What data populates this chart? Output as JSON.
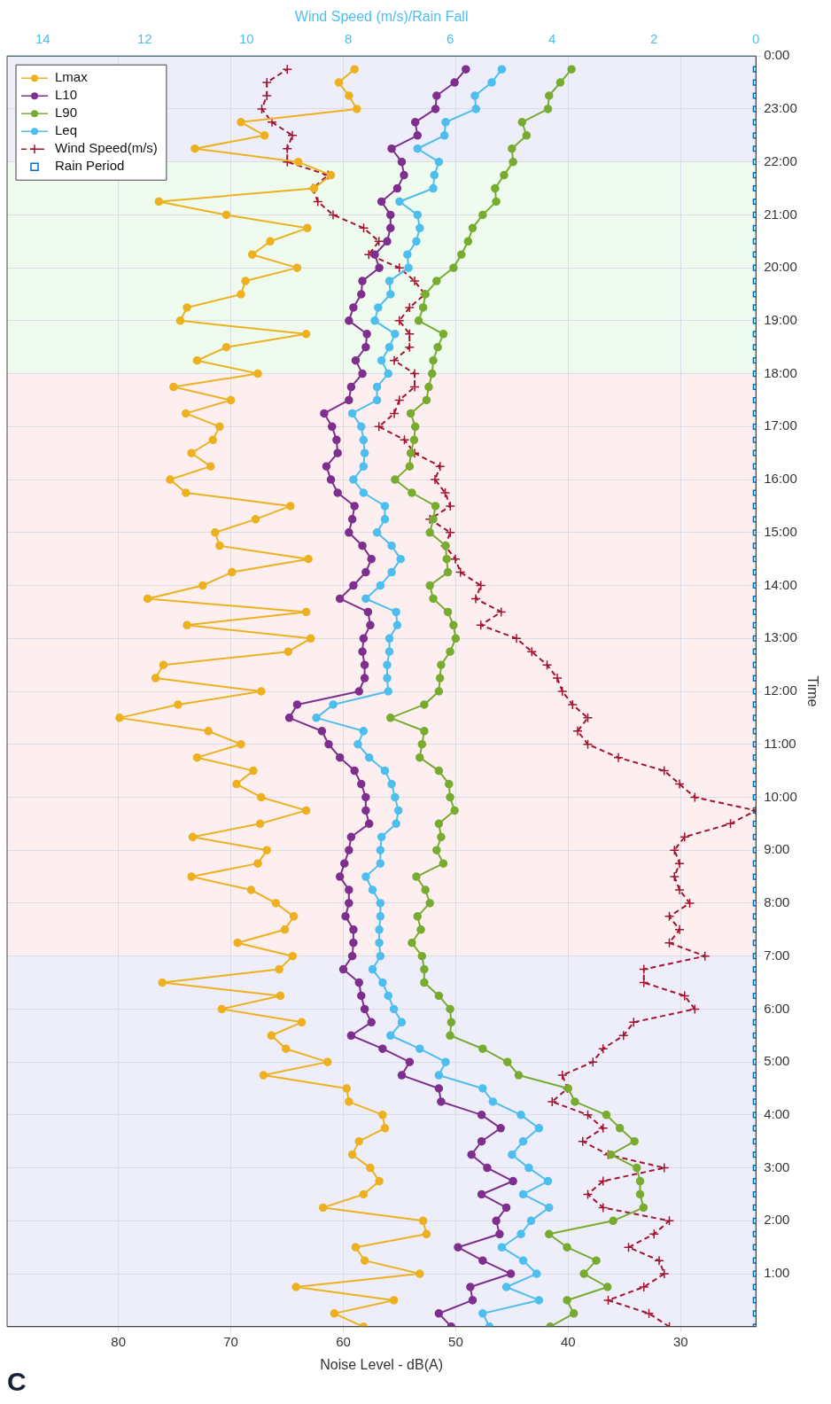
{
  "chart_data": {
    "type": "line",
    "xlabel": "Noise Level - dB(A)",
    "ylabel": "Time",
    "x2label": "Wind Speed (m/s)/Rain Fall",
    "annotations": [
      "C"
    ],
    "series": [
      {
        "name": "Lmax",
        "color": "#edb120",
        "marker": "circle",
        "line_style": "solid",
        "x": [
          58.2,
          60.8,
          55.5,
          64.2,
          53.2,
          58.1,
          58.9,
          52.6,
          52.9,
          61.8,
          58.2,
          56.8,
          57.6,
          59.2,
          58.6,
          56.3,
          56.5,
          59.5,
          59.7,
          67.1,
          61.4,
          65.1,
          66.4,
          63.7,
          70.8,
          65.6,
          76.1,
          65.7,
          64.5,
          69.4,
          65.2,
          64.4,
          66.0,
          68.2,
          73.5,
          67.6,
          66.8,
          73.4,
          67.4,
          63.3,
          67.3,
          69.5,
          68.0,
          73.0,
          69.1,
          72.0,
          79.9,
          74.7,
          67.3,
          76.7,
          76.0,
          64.9,
          62.9,
          73.9,
          63.3,
          77.4,
          72.5,
          69.9,
          63.1,
          71.0,
          71.4,
          67.8,
          64.7,
          74.0,
          75.4,
          71.8,
          73.5,
          71.6,
          71.0,
          74.0,
          70.0,
          75.1,
          67.6,
          73.0,
          70.4,
          63.3,
          74.5,
          73.9,
          69.1,
          68.7,
          64.1,
          68.1,
          66.5,
          63.2,
          70.4,
          76.4,
          62.6,
          61.1,
          64.0,
          73.2,
          67.0,
          69.1,
          58.8,
          59.5,
          60.4,
          59.0
        ],
        "values": [
          0,
          0.25,
          0.5,
          0.75,
          1,
          1.25,
          1.5,
          1.75,
          2,
          2.25,
          2.5,
          2.75,
          3,
          3.25,
          3.5,
          3.75,
          4,
          4.25,
          4.5,
          4.75,
          5,
          5.25,
          5.5,
          5.75,
          6,
          6.25,
          6.5,
          6.75,
          7,
          7.25,
          7.5,
          7.75,
          8,
          8.25,
          8.5,
          8.75,
          9,
          9.25,
          9.5,
          9.75,
          10,
          10.25,
          10.5,
          10.75,
          11,
          11.25,
          11.5,
          11.75,
          12,
          12.25,
          12.5,
          12.75,
          13,
          13.25,
          13.5,
          13.75,
          14,
          14.25,
          14.5,
          14.75,
          15,
          15.25,
          15.5,
          15.75,
          16,
          16.25,
          16.5,
          16.75,
          17,
          17.25,
          17.5,
          17.75,
          18,
          18.25,
          18.5,
          18.75,
          19,
          19.25,
          19.5,
          19.75,
          20,
          20.25,
          20.5,
          20.75,
          21,
          21.25,
          21.5,
          21.75,
          22,
          22.25,
          22.5,
          22.75,
          23,
          23.25,
          23.5,
          23.75
        ]
      },
      {
        "name": "L10",
        "color": "#7e2f8e",
        "marker": "circle",
        "line_style": "solid",
        "x": [
          50.4,
          51.5,
          48.5,
          48.7,
          45.1,
          47.6,
          49.8,
          46.1,
          46.4,
          45.5,
          47.7,
          44.9,
          47.2,
          48.6,
          47.7,
          46.0,
          47.7,
          51.3,
          51.5,
          54.8,
          54.1,
          56.5,
          59.3,
          57.5,
          58.1,
          58.4,
          58.6,
          60.0,
          59.2,
          59.1,
          59.1,
          59.8,
          59.5,
          59.5,
          60.3,
          59.9,
          59.5,
          59.3,
          57.7,
          58.0,
          58.0,
          58.4,
          59.0,
          60.3,
          61.3,
          61.9,
          64.8,
          64.1,
          58.6,
          58.1,
          58.1,
          58.3,
          58.2,
          57.6,
          57.8,
          60.3,
          59.1,
          58.0,
          57.5,
          58.3,
          59.5,
          59.2,
          59.0,
          60.5,
          61.1,
          61.5,
          60.5,
          60.6,
          61.0,
          61.7,
          59.5,
          59.3,
          58.3,
          58.9,
          58.0,
          57.9,
          59.5,
          59.1,
          58.4,
          58.3,
          56.8,
          57.2,
          56.1,
          55.8,
          55.8,
          56.6,
          55.2,
          54.6,
          54.8,
          55.7,
          53.4,
          53.6,
          51.8,
          51.7,
          50.1,
          49.1
        ],
        "values": [
          0,
          0.25,
          0.5,
          0.75,
          1,
          1.25,
          1.5,
          1.75,
          2,
          2.25,
          2.5,
          2.75,
          3,
          3.25,
          3.5,
          3.75,
          4,
          4.25,
          4.5,
          4.75,
          5,
          5.25,
          5.5,
          5.75,
          6,
          6.25,
          6.5,
          6.75,
          7,
          7.25,
          7.5,
          7.75,
          8,
          8.25,
          8.5,
          8.75,
          9,
          9.25,
          9.5,
          9.75,
          10,
          10.25,
          10.5,
          10.75,
          11,
          11.25,
          11.5,
          11.75,
          12,
          12.25,
          12.5,
          12.75,
          13,
          13.25,
          13.5,
          13.75,
          14,
          14.25,
          14.5,
          14.75,
          15,
          15.25,
          15.5,
          15.75,
          16,
          16.25,
          16.5,
          16.75,
          17,
          17.25,
          17.5,
          17.75,
          18,
          18.25,
          18.5,
          18.75,
          19,
          19.25,
          19.5,
          19.75,
          20,
          20.25,
          20.5,
          20.75,
          21,
          21.25,
          21.5,
          21.75,
          22,
          22.25,
          22.5,
          22.75,
          23,
          23.25,
          23.5,
          23.75
        ]
      },
      {
        "name": "L90",
        "color": "#77ac30",
        "marker": "circle",
        "line_style": "solid",
        "x": [
          41.6,
          39.5,
          40.1,
          36.5,
          38.6,
          37.5,
          40.1,
          41.7,
          36.0,
          33.3,
          33.6,
          33.6,
          33.9,
          36.2,
          34.1,
          35.4,
          36.6,
          39.4,
          40.0,
          44.4,
          45.4,
          47.6,
          50.5,
          50.4,
          50.5,
          51.5,
          52.8,
          52.8,
          53.0,
          53.9,
          53.1,
          53.4,
          52.3,
          52.7,
          53.5,
          51.1,
          51.7,
          51.3,
          51.5,
          50.1,
          50.5,
          50.6,
          51.5,
          53.2,
          53.0,
          52.8,
          55.8,
          52.8,
          51.5,
          51.4,
          51.3,
          50.5,
          50.0,
          50.2,
          50.7,
          52.0,
          52.3,
          50.7,
          50.8,
          50.9,
          52.3,
          52.0,
          51.8,
          53.9,
          55.4,
          54.1,
          54.0,
          53.7,
          53.6,
          54.0,
          52.6,
          52.4,
          52.1,
          52.0,
          51.6,
          51.1,
          53.3,
          52.9,
          52.7,
          51.7,
          50.2,
          49.5,
          48.9,
          48.5,
          47.6,
          46.4,
          46.5,
          45.7,
          44.9,
          45.0,
          43.7,
          44.1,
          41.8,
          41.7,
          40.7,
          39.7
        ],
        "values": [
          0,
          0.25,
          0.5,
          0.75,
          1,
          1.25,
          1.5,
          1.75,
          2,
          2.25,
          2.5,
          2.75,
          3,
          3.25,
          3.5,
          3.75,
          4,
          4.25,
          4.5,
          4.75,
          5,
          5.25,
          5.5,
          5.75,
          6,
          6.25,
          6.5,
          6.75,
          7,
          7.25,
          7.5,
          7.75,
          8,
          8.25,
          8.5,
          8.75,
          9,
          9.25,
          9.5,
          9.75,
          10,
          10.25,
          10.5,
          10.75,
          11,
          11.25,
          11.5,
          11.75,
          12,
          12.25,
          12.5,
          12.75,
          13,
          13.25,
          13.5,
          13.75,
          14,
          14.25,
          14.5,
          14.75,
          15,
          15.25,
          15.5,
          15.75,
          16,
          16.25,
          16.5,
          16.75,
          17,
          17.25,
          17.5,
          17.75,
          18,
          18.25,
          18.5,
          18.75,
          19,
          19.25,
          19.5,
          19.75,
          20,
          20.25,
          20.5,
          20.75,
          21,
          21.25,
          21.5,
          21.75,
          22,
          22.25,
          22.5,
          22.75,
          23,
          23.25,
          23.5,
          23.75
        ]
      },
      {
        "name": "Leq",
        "color": "#4dbeee",
        "marker": "circle",
        "line_style": "solid",
        "x": [
          47.0,
          47.6,
          42.6,
          45.5,
          42.8,
          44.0,
          45.9,
          44.2,
          43.3,
          41.7,
          44.0,
          41.8,
          43.5,
          45.0,
          44.0,
          42.6,
          44.2,
          46.7,
          47.6,
          51.5,
          50.9,
          53.2,
          55.8,
          54.8,
          55.5,
          56.0,
          56.5,
          57.4,
          56.7,
          56.8,
          56.8,
          56.7,
          56.7,
          57.4,
          58.0,
          56.7,
          56.7,
          56.6,
          55.3,
          55.1,
          55.4,
          55.7,
          56.3,
          57.7,
          58.7,
          58.2,
          62.4,
          60.9,
          56.0,
          56.1,
          56.1,
          55.9,
          55.9,
          55.2,
          55.3,
          58.0,
          56.7,
          55.7,
          54.9,
          55.7,
          57.0,
          56.3,
          56.3,
          58.2,
          59.1,
          58.2,
          58.1,
          58.2,
          58.4,
          59.2,
          57.0,
          57.0,
          56.0,
          56.6,
          55.9,
          55.4,
          57.2,
          56.9,
          55.8,
          55.9,
          54.2,
          54.3,
          53.5,
          53.2,
          53.4,
          55.0,
          52.0,
          51.9,
          51.5,
          53.4,
          51.0,
          50.9,
          48.2,
          48.3,
          46.8,
          45.9
        ],
        "values": [
          0,
          0.25,
          0.5,
          0.75,
          1,
          1.25,
          1.5,
          1.75,
          2,
          2.25,
          2.5,
          2.75,
          3,
          3.25,
          3.5,
          3.75,
          4,
          4.25,
          4.5,
          4.75,
          5,
          5.25,
          5.5,
          5.75,
          6,
          6.25,
          6.5,
          6.75,
          7,
          7.25,
          7.5,
          7.75,
          8,
          8.25,
          8.5,
          8.75,
          9,
          9.25,
          9.5,
          9.75,
          10,
          10.25,
          10.5,
          10.75,
          11,
          11.25,
          11.5,
          11.75,
          12,
          12.25,
          12.5,
          12.75,
          13,
          13.25,
          13.5,
          13.75,
          14,
          14.25,
          14.5,
          14.75,
          15,
          15.25,
          15.5,
          15.75,
          16,
          16.25,
          16.5,
          16.75,
          17,
          17.25,
          17.5,
          17.75,
          18,
          18.25,
          18.5,
          18.75,
          19,
          19.25,
          19.5,
          19.75,
          20,
          20.25,
          20.5,
          20.75,
          21,
          21.25,
          21.5,
          21.75,
          22,
          22.25,
          22.5,
          22.75,
          23,
          23.25,
          23.5,
          23.75
        ]
      },
      {
        "name": "Wind Speed(m/s)",
        "color": "#a2142f",
        "marker": "cross",
        "line_style": "dashed",
        "axis": "x2",
        "x": [
          1.7,
          2.1,
          2.9,
          2.2,
          1.8,
          1.9,
          2.5,
          2.0,
          1.7,
          3.0,
          3.3,
          3.0,
          1.8,
          2.9,
          3.4,
          3.0,
          3.3,
          4.0,
          3.7,
          3.8,
          3.2,
          3.0,
          2.6,
          2.4,
          1.2,
          1.4,
          2.2,
          2.2,
          1.0,
          1.7,
          1.5,
          1.7,
          1.3,
          1.5,
          1.6,
          1.5,
          1.6,
          1.4,
          0.5,
          0.0,
          1.2,
          1.5,
          1.8,
          2.7,
          3.3,
          3.5,
          3.3,
          3.6,
          3.8,
          3.9,
          4.1,
          4.4,
          4.7,
          5.4,
          5.0,
          5.5,
          5.4,
          5.8,
          5.9,
          6.1,
          6.0,
          6.4,
          6.0,
          6.1,
          6.3,
          6.2,
          6.7,
          6.9,
          7.4,
          7.1,
          7.0,
          6.7,
          6.7,
          7.1,
          6.8,
          6.8,
          7.0,
          6.8,
          6.5,
          6.7,
          7.0,
          7.6,
          7.4,
          7.7,
          8.3,
          8.6,
          8.7,
          8.4,
          9.2,
          9.2,
          9.1,
          9.5,
          9.7,
          9.6,
          9.6,
          9.2
        ],
        "values": [
          0,
          0.25,
          0.5,
          0.75,
          1,
          1.25,
          1.5,
          1.75,
          2,
          2.25,
          2.5,
          2.75,
          3,
          3.25,
          3.5,
          3.75,
          4,
          4.25,
          4.5,
          4.75,
          5,
          5.25,
          5.5,
          5.75,
          6,
          6.25,
          6.5,
          6.75,
          7,
          7.25,
          7.5,
          7.75,
          8,
          8.25,
          8.5,
          8.75,
          9,
          9.25,
          9.5,
          9.75,
          10,
          10.25,
          10.5,
          10.75,
          11,
          11.25,
          11.5,
          11.75,
          12,
          12.25,
          12.5,
          12.75,
          13,
          13.25,
          13.5,
          13.75,
          14,
          14.25,
          14.5,
          14.75,
          15,
          15.25,
          15.5,
          15.75,
          16,
          16.25,
          16.5,
          16.75,
          17,
          17.25,
          17.5,
          17.75,
          18,
          18.25,
          18.5,
          18.75,
          19,
          19.25,
          19.5,
          19.75,
          20,
          20.25,
          20.5,
          20.75,
          21,
          21.25,
          21.5,
          21.75,
          22,
          22.25,
          22.5,
          22.75,
          23,
          23.25,
          23.5,
          23.75
        ]
      },
      {
        "name": "Rain Period",
        "type": "scatter",
        "color": "#0072bd",
        "marker": "square",
        "axis": "x2",
        "x": [
          0,
          0,
          0,
          0,
          0,
          0,
          0,
          0,
          0,
          0,
          0,
          0,
          0,
          0,
          0,
          0,
          0,
          0,
          0,
          0,
          0,
          0,
          0,
          0,
          0,
          0,
          0,
          0,
          0,
          0,
          0,
          0,
          0,
          0,
          0,
          0,
          0,
          0,
          0,
          0,
          0,
          0,
          0,
          0,
          0,
          0,
          0,
          0,
          0,
          0,
          0,
          0,
          0,
          0,
          0,
          0,
          0,
          0,
          0,
          0,
          0,
          0,
          0,
          0,
          0,
          0,
          0,
          0,
          0,
          0,
          0,
          0,
          0,
          0,
          0,
          0,
          0,
          0,
          0,
          0,
          0,
          0,
          0,
          0,
          0,
          0,
          0,
          0,
          0,
          0,
          0,
          0,
          0,
          0,
          0,
          0
        ],
        "values": [
          0,
          0.25,
          0.5,
          0.75,
          1,
          1.25,
          1.5,
          1.75,
          2,
          2.25,
          2.5,
          2.75,
          3,
          3.25,
          3.5,
          3.75,
          4,
          4.25,
          4.5,
          4.75,
          5,
          5.25,
          5.5,
          5.75,
          6,
          6.25,
          6.5,
          6.75,
          7,
          7.25,
          7.5,
          7.75,
          8,
          8.25,
          8.5,
          8.75,
          9,
          9.25,
          9.5,
          9.75,
          10,
          10.25,
          10.5,
          10.75,
          11,
          11.25,
          11.5,
          11.75,
          12,
          12.25,
          12.5,
          12.75,
          13,
          13.25,
          13.5,
          13.75,
          14,
          14.25,
          14.5,
          14.75,
          15,
          15.25,
          15.5,
          15.75,
          16,
          16.25,
          16.5,
          16.75,
          17,
          17.25,
          17.5,
          17.75,
          18,
          18.25,
          18.5,
          18.75,
          19,
          19.25,
          19.5,
          19.75,
          20,
          20.25,
          20.5,
          20.75,
          21,
          21.25,
          21.5,
          21.75,
          22,
          22.25,
          22.5,
          22.75,
          23,
          23.25,
          23.5,
          23.75
        ]
      }
    ],
    "ylim": [
      0,
      24
    ],
    "yticks": [
      {
        "value": 1,
        "label": "1:00"
      },
      {
        "value": 2,
        "label": "2:00"
      },
      {
        "value": 3,
        "label": "3:00"
      },
      {
        "value": 4,
        "label": "4:00"
      },
      {
        "value": 5,
        "label": "5:00"
      },
      {
        "value": 6,
        "label": "6:00"
      },
      {
        "value": 7,
        "label": "7:00"
      },
      {
        "value": 8,
        "label": "8:00"
      },
      {
        "value": 9,
        "label": "9:00"
      },
      {
        "value": 10,
        "label": "10:00"
      },
      {
        "value": 11,
        "label": "11:00"
      },
      {
        "value": 12,
        "label": "12:00"
      },
      {
        "value": 13,
        "label": "13:00"
      },
      {
        "value": 14,
        "label": "14:00"
      },
      {
        "value": 15,
        "label": "15:00"
      },
      {
        "value": 16,
        "label": "16:00"
      },
      {
        "value": 17,
        "label": "17:00"
      },
      {
        "value": 18,
        "label": "18:00"
      },
      {
        "value": 19,
        "label": "19:00"
      },
      {
        "value": 20,
        "label": "20:00"
      },
      {
        "value": 21,
        "label": "21:00"
      },
      {
        "value": 22,
        "label": "22:00"
      },
      {
        "value": 23,
        "label": "23:00"
      },
      {
        "value": 24,
        "label": "0:00"
      }
    ],
    "xlim": [
      89.9,
      23.3
    ],
    "xticks": [
      30,
      40,
      50,
      60,
      70,
      80
    ],
    "x2lim": [
      14.7,
      0
    ],
    "x2ticks": [
      0,
      2,
      4,
      6,
      8,
      10,
      12,
      14
    ],
    "bands": [
      {
        "axis": "y",
        "from": 0,
        "to": 7,
        "color": "#eeeefb"
      },
      {
        "axis": "y",
        "from": 7,
        "to": 18,
        "color": "#fdeff0"
      },
      {
        "axis": "y",
        "from": 18,
        "to": 22,
        "color": "#effbee"
      },
      {
        "axis": "y",
        "from": 22,
        "to": 24,
        "color": "#eeeefb"
      }
    ],
    "grid": true,
    "legend": "top left"
  }
}
